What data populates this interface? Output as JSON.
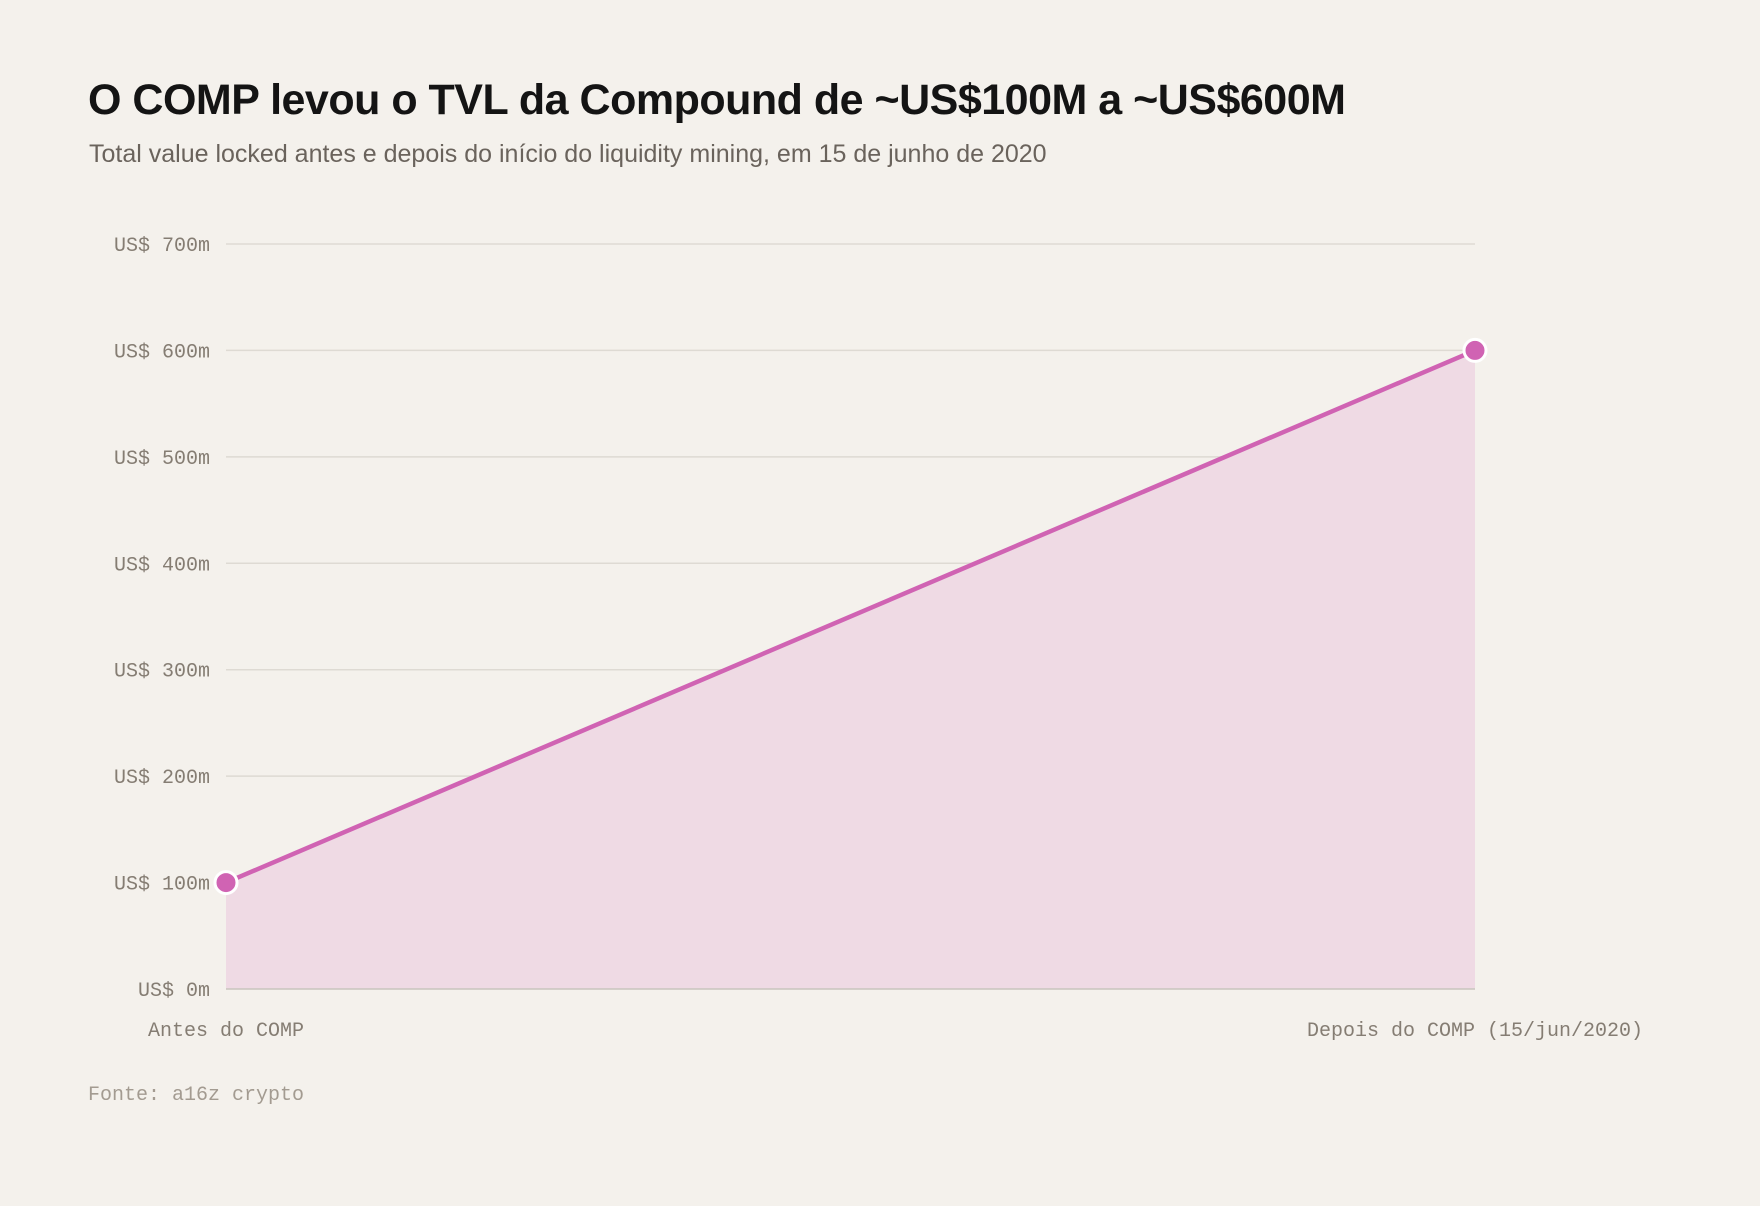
{
  "chart_data": {
    "type": "area",
    "title": "O COMP levou o TVL da Compound de ~US$100M a ~US$600M",
    "subtitle": "Total value locked antes e depois do início do liquidity mining, em 15 de junho de 2020",
    "categories": [
      "Antes do COMP",
      "Depois do COMP (15/jun/2020)"
    ],
    "series": [
      {
        "values": [
          100,
          600
        ],
        "color": "#d063b3",
        "fill": "#efdae4"
      }
    ],
    "ylim": [
      0,
      700
    ],
    "yticks": [
      0,
      100,
      200,
      300,
      400,
      500,
      600,
      700
    ],
    "ytick_labels": [
      "US$ 0m",
      "US$ 100m",
      "US$ 200m",
      "US$ 300m",
      "US$ 400m",
      "US$ 500m",
      "US$ 600m",
      "US$ 700m"
    ],
    "grid": true,
    "legend": "none",
    "source": "Fonte: a16z crypto"
  }
}
